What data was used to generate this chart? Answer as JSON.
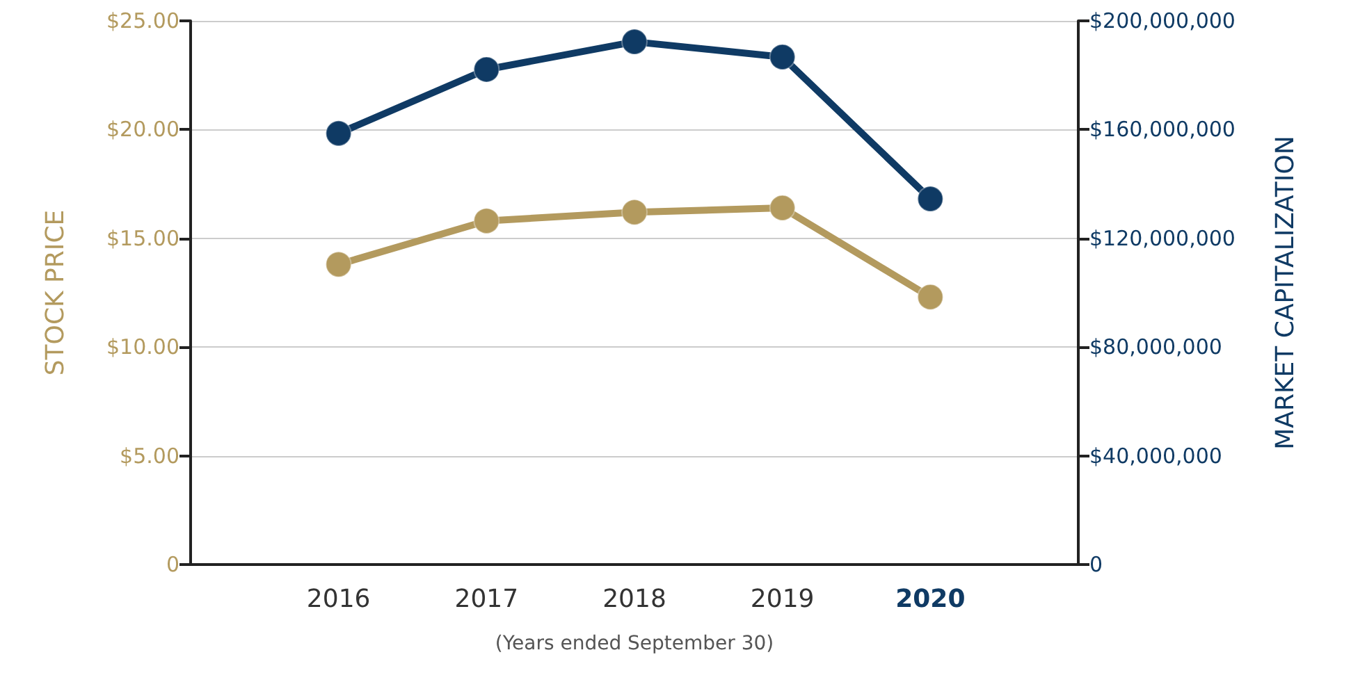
{
  "chart_data": {
    "type": "line",
    "categories": [
      "2016",
      "2017",
      "2018",
      "2019",
      "2020"
    ],
    "xlabel": "(Years ended September 30)",
    "ylabel": "STOCK PRICE",
    "y2label": "MARKET CAPITALIZATION",
    "series": [
      {
        "color": "#b39a5e",
        "values": [
          13.8,
          15.8,
          16.2,
          16.4,
          12.3
        ]
      },
      {
        "color": "#0f3a64",
        "axis": "y2",
        "values": [
          158600000,
          182100000,
          192300000,
          186700000,
          134500000
        ]
      }
    ],
    "ylim": [
      0,
      25
    ],
    "yticks": [
      {
        "value": 0,
        "label": "0"
      },
      {
        "value": 5,
        "label": "$5.00"
      },
      {
        "value": 10,
        "label": "$10.00"
      },
      {
        "value": 15,
        "label": "$15.00"
      },
      {
        "value": 20,
        "label": "$20.00"
      },
      {
        "value": 25,
        "label": "$25.00"
      }
    ],
    "y2lim": [
      0,
      200000000
    ],
    "y2ticks": [
      {
        "value": 0,
        "label": "0"
      },
      {
        "value": 40000000,
        "label": "$40,000,000"
      },
      {
        "value": 80000000,
        "label": "$80,000,000"
      },
      {
        "value": 120000000,
        "label": "$120,000,000"
      },
      {
        "value": 160000000,
        "label": "$160,000,000"
      },
      {
        "value": 200000000,
        "label": "$200,000,000"
      }
    ],
    "grid": "y",
    "marker": "circle",
    "line_style": "solid"
  }
}
